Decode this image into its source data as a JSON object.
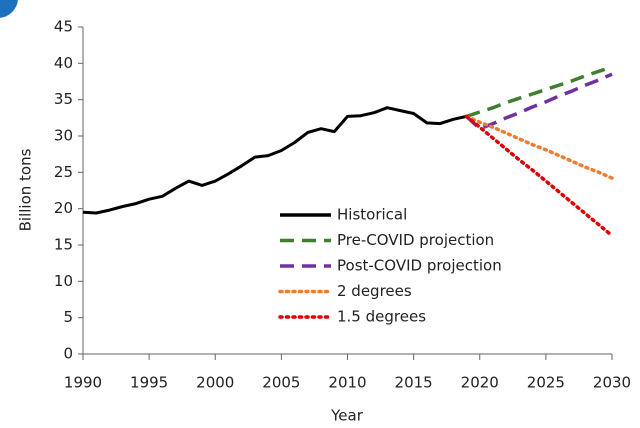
{
  "chart_data": {
    "type": "line",
    "x_label": "Year",
    "y_label": "Billion tons",
    "x": [
      1990,
      1991,
      1992,
      1993,
      1994,
      1995,
      1996,
      1997,
      1998,
      1999,
      2000,
      2001,
      2002,
      2003,
      2004,
      2005,
      2006,
      2007,
      2008,
      2009,
      2010,
      2011,
      2012,
      2013,
      2014,
      2015,
      2016,
      2017,
      2018,
      2019,
      2020,
      2021,
      2022,
      2023,
      2024,
      2025,
      2026,
      2027,
      2028,
      2029,
      2030
    ],
    "xlim": [
      1990,
      2030
    ],
    "xticks": [
      1990,
      1995,
      2000,
      2005,
      2010,
      2015,
      2020,
      2025,
      2030
    ],
    "ylim": [
      0,
      45
    ],
    "yticks": [
      0,
      5,
      10,
      15,
      20,
      25,
      30,
      35,
      40,
      45
    ],
    "grid": false,
    "series": [
      {
        "name": "Historical",
        "color": "#000000",
        "dash": "solid",
        "values": [
          19.5,
          19.4,
          19.8,
          20.3,
          20.7,
          21.3,
          21.7,
          22.8,
          23.8,
          23.2,
          23.8,
          24.8,
          25.9,
          27.1,
          27.3,
          28.0,
          29.1,
          30.5,
          31.0,
          30.6,
          32.7,
          32.8,
          33.2,
          33.9,
          33.5,
          33.1,
          31.8,
          31.7,
          32.3,
          32.7,
          null,
          null,
          null,
          null,
          null,
          null,
          null,
          null,
          null,
          null,
          null
        ]
      },
      {
        "name": "Pre-COVID projection",
        "color": "#3f7f2f",
        "dash": "dashed",
        "values": [
          null,
          null,
          null,
          null,
          null,
          null,
          null,
          null,
          null,
          null,
          null,
          null,
          null,
          null,
          null,
          null,
          null,
          null,
          null,
          null,
          null,
          null,
          null,
          null,
          null,
          null,
          null,
          null,
          null,
          32.7,
          33.3,
          33.9,
          34.6,
          35.2,
          35.8,
          36.4,
          37.0,
          37.6,
          38.3,
          38.9,
          39.5
        ]
      },
      {
        "name": "Post-COVID projection",
        "color": "#7030a0",
        "dash": "dashed",
        "values": [
          null,
          null,
          null,
          null,
          null,
          null,
          null,
          null,
          null,
          null,
          null,
          null,
          null,
          null,
          null,
          null,
          null,
          null,
          null,
          null,
          null,
          null,
          null,
          null,
          null,
          null,
          null,
          null,
          null,
          32.7,
          31.0,
          31.7,
          32.5,
          33.2,
          34.0,
          34.7,
          35.5,
          36.2,
          37.0,
          37.7,
          38.5
        ]
      },
      {
        "name": "2 degrees",
        "color": "#ed7d31",
        "dash": "dotted",
        "values": [
          null,
          null,
          null,
          null,
          null,
          null,
          null,
          null,
          null,
          null,
          null,
          null,
          null,
          null,
          null,
          null,
          null,
          null,
          null,
          null,
          null,
          null,
          null,
          null,
          null,
          null,
          null,
          null,
          null,
          32.7,
          31.9,
          31.2,
          30.4,
          29.6,
          28.8,
          28.1,
          27.3,
          26.5,
          25.7,
          25.0,
          24.2
        ]
      },
      {
        "name": "1.5 degrees",
        "color": "#e00000",
        "dash": "dotted",
        "values": [
          null,
          null,
          null,
          null,
          null,
          null,
          null,
          null,
          null,
          null,
          null,
          null,
          null,
          null,
          null,
          null,
          null,
          null,
          null,
          null,
          null,
          null,
          null,
          null,
          null,
          null,
          null,
          null,
          null,
          32.7,
          31.2,
          29.7,
          28.2,
          26.7,
          25.3,
          23.8,
          22.3,
          20.8,
          19.3,
          17.8,
          16.3
        ]
      }
    ]
  }
}
